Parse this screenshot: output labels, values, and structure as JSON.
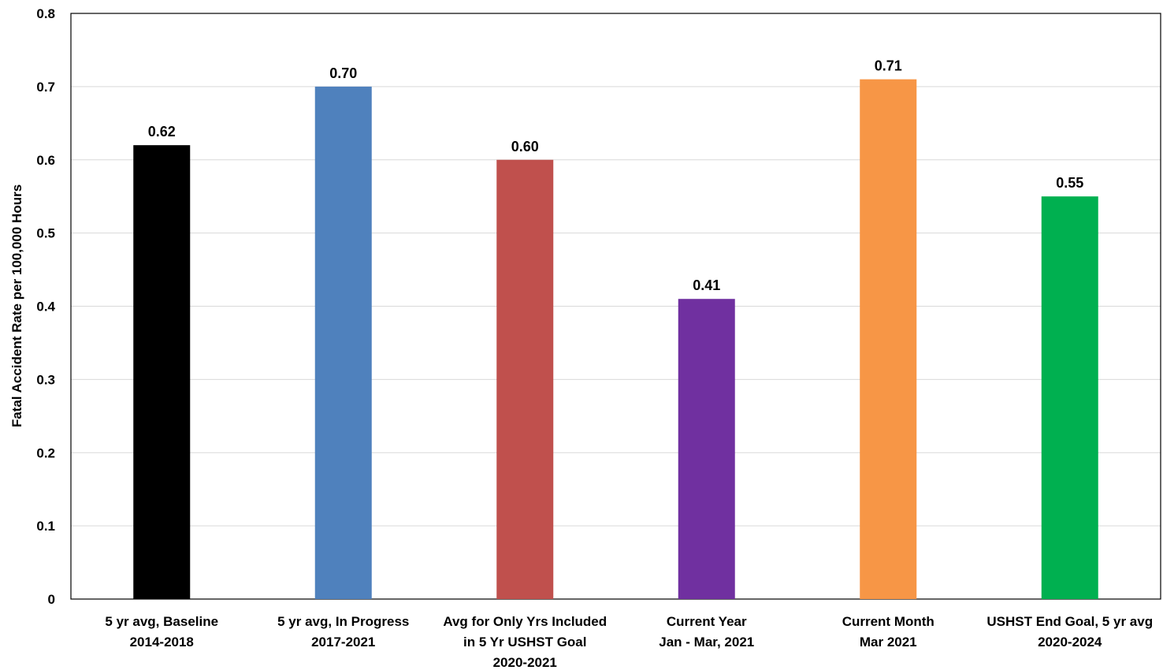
{
  "chart_data": {
    "type": "bar",
    "title": "",
    "xlabel": "",
    "ylabel": "Fatal Accident Rate per 100,000 Hours",
    "ylim": [
      0,
      0.8
    ],
    "yticks": [
      "0",
      "0.1",
      "0.2",
      "0.3",
      "0.4",
      "0.5",
      "0.6",
      "0.7",
      "0.8"
    ],
    "grid": true,
    "legend": "none",
    "categories": [
      [
        "5 yr avg, Baseline",
        "2014-2018"
      ],
      [
        "5 yr avg, In Progress",
        "2017-2021"
      ],
      [
        "Avg for Only Yrs Included",
        "in 5 Yr USHST Goal",
        "2020-2021"
      ],
      [
        "Current Year",
        "Jan - Mar, 2021"
      ],
      [
        "Current Month",
        "Mar 2021"
      ],
      [
        "USHST End Goal, 5 yr avg",
        "2020-2024"
      ]
    ],
    "values": [
      0.62,
      0.7,
      0.6,
      0.41,
      0.71,
      0.55
    ],
    "value_labels": [
      "0.62",
      "0.70",
      "0.60",
      "0.41",
      "0.71",
      "0.55"
    ],
    "colors": [
      "#000000",
      "#4F81BD",
      "#C0504D",
      "#7030A0",
      "#F79646",
      "#00B050"
    ]
  }
}
